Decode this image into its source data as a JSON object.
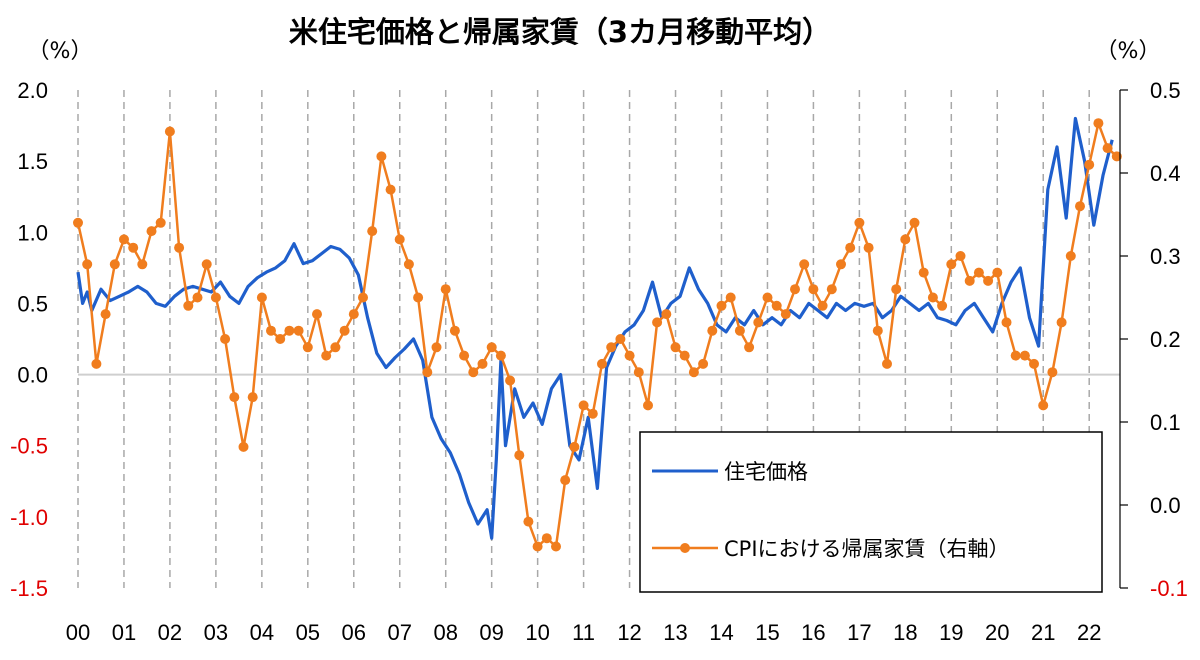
{
  "chart_data": {
    "type": "line",
    "title": "米住宅価格と帰属家賃（3カ月移動平均）",
    "left_unit": "（%）",
    "right_unit": "（%）",
    "x_tick_labels": [
      "00",
      "01",
      "02",
      "03",
      "04",
      "05",
      "06",
      "07",
      "08",
      "09",
      "10",
      "11",
      "12",
      "13",
      "14",
      "15",
      "16",
      "17",
      "18",
      "19",
      "20",
      "21",
      "22"
    ],
    "x_range": [
      2000.0,
      2022.67
    ],
    "y_left": {
      "range": [
        -1.5,
        2.0
      ],
      "ticks": [
        "2.0",
        "1.5",
        "1.0",
        "0.5",
        "0.0",
        "-0.5",
        "-1.0",
        "-1.5"
      ],
      "tick_values": [
        2.0,
        1.5,
        1.0,
        0.5,
        0.0,
        -0.5,
        -1.0,
        -1.5
      ]
    },
    "y_right": {
      "range": [
        -0.1,
        0.5
      ],
      "ticks": [
        "0.5",
        "0.4",
        "0.3",
        "0.2",
        "0.1",
        "0.0",
        "-0.1"
      ],
      "tick_values": [
        0.5,
        0.4,
        0.3,
        0.2,
        0.1,
        0.0,
        -0.1
      ]
    },
    "negative_tick_color": "#e00000",
    "grid": {
      "vertical_dashed": true,
      "zero_line": true
    },
    "legend_placement": "bottom-right",
    "series": [
      {
        "name": "住宅価格",
        "axis": "left",
        "color": "#1f5fcc",
        "marker": "none",
        "x": [
          2000.0,
          2000.1,
          2000.2,
          2000.3,
          2000.5,
          2000.7,
          2000.9,
          2001.1,
          2001.3,
          2001.5,
          2001.7,
          2001.9,
          2002.1,
          2002.3,
          2002.5,
          2002.7,
          2002.9,
          2003.1,
          2003.3,
          2003.5,
          2003.7,
          2003.9,
          2004.1,
          2004.3,
          2004.5,
          2004.7,
          2004.9,
          2005.1,
          2005.3,
          2005.5,
          2005.7,
          2005.9,
          2006.1,
          2006.3,
          2006.5,
          2006.7,
          2006.9,
          2007.1,
          2007.3,
          2007.5,
          2007.7,
          2007.9,
          2008.1,
          2008.3,
          2008.5,
          2008.7,
          2008.9,
          2009.0,
          2009.1,
          2009.2,
          2009.3,
          2009.5,
          2009.7,
          2009.9,
          2010.1,
          2010.3,
          2010.5,
          2010.7,
          2010.9,
          2011.1,
          2011.3,
          2011.5,
          2011.7,
          2011.9,
          2012.1,
          2012.3,
          2012.5,
          2012.7,
          2012.9,
          2013.1,
          2013.3,
          2013.5,
          2013.7,
          2013.9,
          2014.1,
          2014.3,
          2014.5,
          2014.7,
          2014.9,
          2015.1,
          2015.3,
          2015.5,
          2015.7,
          2015.9,
          2016.1,
          2016.3,
          2016.5,
          2016.7,
          2016.9,
          2017.1,
          2017.3,
          2017.5,
          2017.7,
          2017.9,
          2018.1,
          2018.3,
          2018.5,
          2018.7,
          2018.9,
          2019.1,
          2019.3,
          2019.5,
          2019.7,
          2019.9,
          2020.1,
          2020.3,
          2020.5,
          2020.7,
          2020.9,
          2021.1,
          2021.3,
          2021.5,
          2021.7,
          2021.9,
          2022.1,
          2022.3,
          2022.5
        ],
        "values": [
          0.72,
          0.5,
          0.58,
          0.45,
          0.6,
          0.52,
          0.55,
          0.58,
          0.62,
          0.58,
          0.5,
          0.48,
          0.55,
          0.6,
          0.62,
          0.6,
          0.58,
          0.65,
          0.55,
          0.5,
          0.62,
          0.68,
          0.72,
          0.75,
          0.8,
          0.92,
          0.78,
          0.8,
          0.85,
          0.9,
          0.88,
          0.82,
          0.7,
          0.4,
          0.15,
          0.05,
          0.12,
          0.18,
          0.25,
          0.1,
          -0.3,
          -0.45,
          -0.55,
          -0.7,
          -0.9,
          -1.05,
          -0.95,
          -1.15,
          -0.6,
          0.1,
          -0.5,
          -0.1,
          -0.3,
          -0.2,
          -0.35,
          -0.1,
          0.0,
          -0.5,
          -0.6,
          -0.3,
          -0.8,
          0.05,
          0.2,
          0.3,
          0.35,
          0.45,
          0.65,
          0.4,
          0.5,
          0.55,
          0.75,
          0.6,
          0.5,
          0.35,
          0.3,
          0.4,
          0.35,
          0.45,
          0.35,
          0.4,
          0.35,
          0.45,
          0.4,
          0.5,
          0.45,
          0.4,
          0.5,
          0.45,
          0.5,
          0.48,
          0.5,
          0.4,
          0.45,
          0.55,
          0.5,
          0.45,
          0.5,
          0.4,
          0.38,
          0.35,
          0.45,
          0.5,
          0.4,
          0.3,
          0.5,
          0.65,
          0.75,
          0.4,
          0.2,
          1.3,
          1.6,
          1.1,
          1.8,
          1.5,
          1.05,
          1.4,
          1.65
        ]
      },
      {
        "name": "CPIにおける帰属家賃（右軸）",
        "axis": "right",
        "color": "#f07d1e",
        "marker": "circle",
        "x": [
          2000.0,
          2000.2,
          2000.4,
          2000.6,
          2000.8,
          2001.0,
          2001.2,
          2001.4,
          2001.6,
          2001.8,
          2002.0,
          2002.2,
          2002.4,
          2002.6,
          2002.8,
          2003.0,
          2003.2,
          2003.4,
          2003.6,
          2003.8,
          2004.0,
          2004.2,
          2004.4,
          2004.6,
          2004.8,
          2005.0,
          2005.2,
          2005.4,
          2005.6,
          2005.8,
          2006.0,
          2006.2,
          2006.4,
          2006.6,
          2006.8,
          2007.0,
          2007.2,
          2007.4,
          2007.6,
          2007.8,
          2008.0,
          2008.2,
          2008.4,
          2008.6,
          2008.8,
          2009.0,
          2009.2,
          2009.4,
          2009.6,
          2009.8,
          2010.0,
          2010.2,
          2010.4,
          2010.6,
          2010.8,
          2011.0,
          2011.2,
          2011.4,
          2011.6,
          2011.8,
          2012.0,
          2012.2,
          2012.4,
          2012.6,
          2012.8,
          2013.0,
          2013.2,
          2013.4,
          2013.6,
          2013.8,
          2014.0,
          2014.2,
          2014.4,
          2014.6,
          2014.8,
          2015.0,
          2015.2,
          2015.4,
          2015.6,
          2015.8,
          2016.0,
          2016.2,
          2016.4,
          2016.6,
          2016.8,
          2017.0,
          2017.2,
          2017.4,
          2017.6,
          2017.8,
          2018.0,
          2018.2,
          2018.4,
          2018.6,
          2018.8,
          2019.0,
          2019.2,
          2019.4,
          2019.6,
          2019.8,
          2020.0,
          2020.2,
          2020.4,
          2020.6,
          2020.8,
          2021.0,
          2021.2,
          2021.4,
          2021.6,
          2021.8,
          2022.0,
          2022.2,
          2022.4,
          2022.6
        ],
        "values": [
          0.34,
          0.29,
          0.17,
          0.23,
          0.29,
          0.32,
          0.31,
          0.29,
          0.33,
          0.34,
          0.45,
          0.31,
          0.24,
          0.25,
          0.29,
          0.25,
          0.2,
          0.13,
          0.07,
          0.13,
          0.25,
          0.21,
          0.2,
          0.21,
          0.21,
          0.19,
          0.23,
          0.18,
          0.19,
          0.21,
          0.23,
          0.25,
          0.33,
          0.42,
          0.38,
          0.32,
          0.29,
          0.25,
          0.16,
          0.19,
          0.26,
          0.21,
          0.18,
          0.16,
          0.17,
          0.19,
          0.18,
          0.15,
          0.06,
          -0.02,
          -0.05,
          -0.04,
          -0.05,
          0.03,
          0.07,
          0.12,
          0.11,
          0.17,
          0.19,
          0.2,
          0.18,
          0.16,
          0.12,
          0.22,
          0.23,
          0.19,
          0.18,
          0.16,
          0.17,
          0.21,
          0.24,
          0.25,
          0.21,
          0.19,
          0.22,
          0.25,
          0.24,
          0.23,
          0.26,
          0.29,
          0.26,
          0.24,
          0.26,
          0.29,
          0.31,
          0.34,
          0.31,
          0.21,
          0.17,
          0.26,
          0.32,
          0.34,
          0.28,
          0.25,
          0.24,
          0.29,
          0.3,
          0.27,
          0.28,
          0.27,
          0.28,
          0.22,
          0.18,
          0.18,
          0.17,
          0.12,
          0.16,
          0.22,
          0.3,
          0.36,
          0.41,
          0.46,
          0.43,
          0.42
        ]
      }
    ]
  }
}
